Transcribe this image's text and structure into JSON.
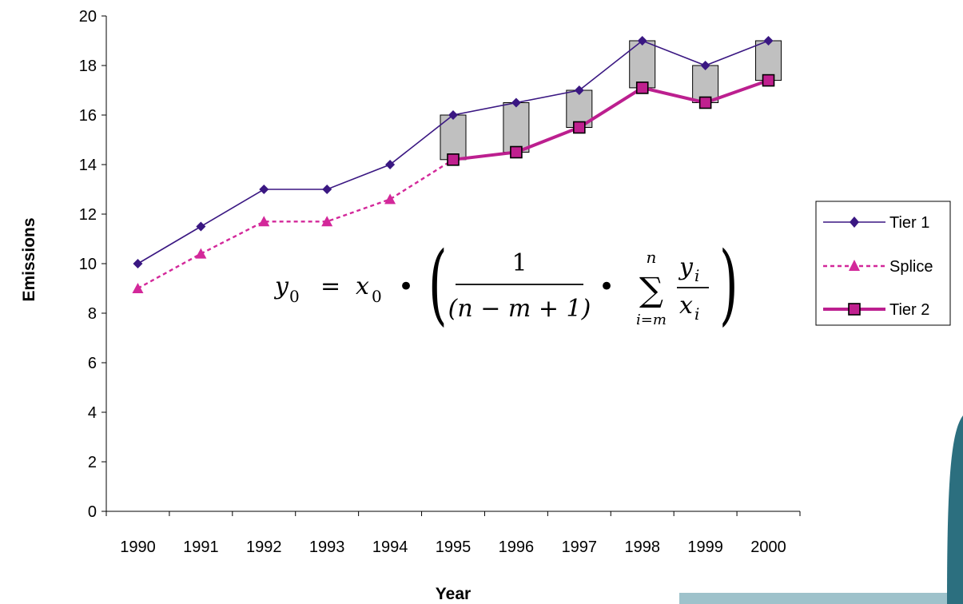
{
  "chart_data": {
    "type": "line",
    "title": "",
    "xlabel": "Year",
    "ylabel": "Emissions",
    "ylim": [
      0,
      20
    ],
    "yticks": [
      0,
      2,
      4,
      6,
      8,
      10,
      12,
      14,
      16,
      18,
      20
    ],
    "categories": [
      "1990",
      "1991",
      "1992",
      "1993",
      "1994",
      "1995",
      "1996",
      "1997",
      "1998",
      "1999",
      "2000"
    ],
    "series": [
      {
        "name": "Tier 1",
        "values": [
          10,
          11.5,
          13,
          13,
          14,
          16,
          16.5,
          17,
          19,
          18,
          19
        ]
      },
      {
        "name": "Splice",
        "values": [
          9,
          10.4,
          11.7,
          11.7,
          12.6,
          14.2,
          null,
          null,
          null,
          null,
          null
        ]
      },
      {
        "name": "Tier 2",
        "values": [
          null,
          null,
          null,
          null,
          null,
          14.2,
          14.5,
          15.5,
          17.1,
          16.5,
          17.4
        ]
      }
    ],
    "legend_position": "right",
    "grid": false,
    "colors": {
      "tier1": "#3a1782",
      "splice": "#d3289a",
      "tier2": "#bc1f8f",
      "tier2_marker": "#c0208f",
      "gap_fill": "#c0c0c0",
      "deco": "#2c6f7f"
    },
    "formula": {
      "y": "y",
      "zero": "0",
      "eq": "=",
      "x": "x",
      "dot": "•",
      "one": "1",
      "den": "(n − m + 1)",
      "sigma": "∑",
      "sigma_top": "n",
      "sigma_bottom": "i=m",
      "frac_y": "y",
      "frac_x": "x",
      "i": "i",
      "lparen": "(",
      "rparen": ")"
    }
  }
}
